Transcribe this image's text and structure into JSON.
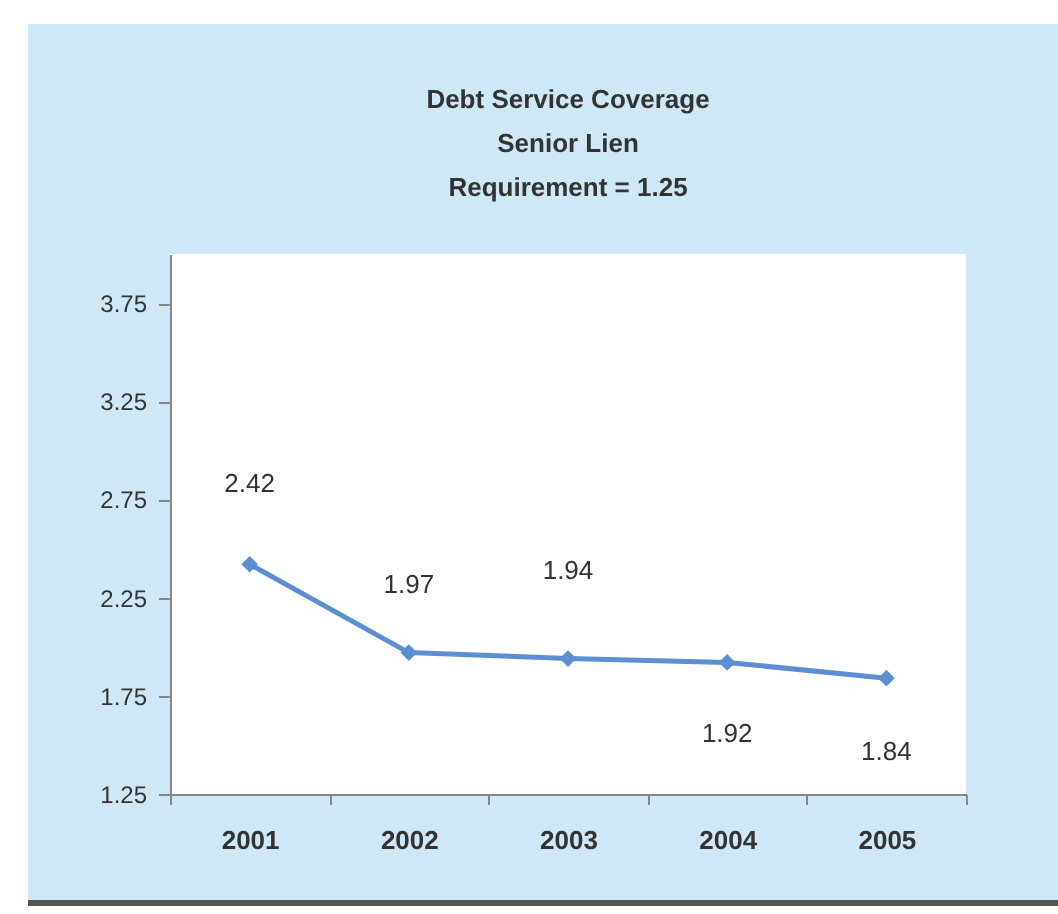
{
  "chart_data": {
    "type": "line",
    "title": "Debt Service Coverage\nSenior Lien\nRequirement = 1.25",
    "categories": [
      "2001",
      "2002",
      "2003",
      "2004",
      "2005"
    ],
    "series": [
      {
        "color": "#5b8ed2",
        "values": [
          2.42,
          1.97,
          1.94,
          1.92,
          1.84
        ]
      }
    ],
    "ylim": [
      1.25,
      4.0
    ],
    "yticks": [
      1.25,
      1.75,
      2.25,
      2.75,
      3.25,
      3.75
    ],
    "data_labels": true,
    "marker": "diamond",
    "line_style": "solid",
    "grid": false,
    "legend": false
  }
}
